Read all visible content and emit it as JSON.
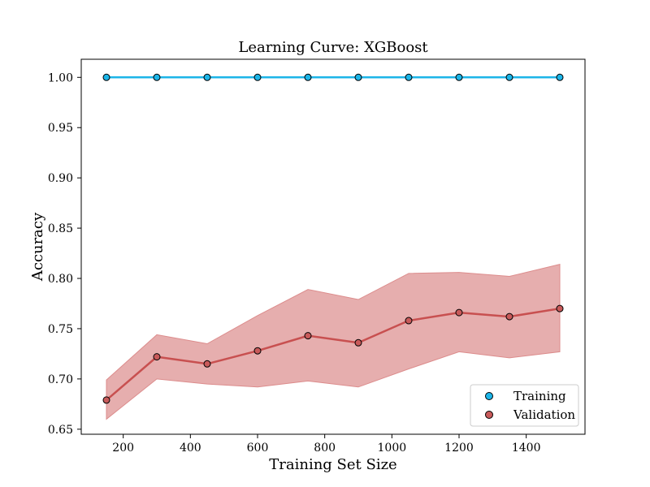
{
  "chart_data": {
    "type": "line",
    "title": "Learning Curve: XGBoost",
    "xlabel": "Training Set Size",
    "ylabel": "Accuracy",
    "x": [
      150,
      300,
      450,
      600,
      750,
      900,
      1050,
      1200,
      1350,
      1500
    ],
    "xlim": [
      75,
      1575
    ],
    "ylim": [
      0.645,
      1.018
    ],
    "xticks": [
      200,
      400,
      600,
      800,
      1000,
      1200,
      1400
    ],
    "yticks": [
      0.65,
      0.7,
      0.75,
      0.8,
      0.85,
      0.9,
      0.95,
      1.0
    ],
    "ytick_labels": [
      "0.65",
      "0.70",
      "0.75",
      "0.80",
      "0.85",
      "0.90",
      "0.95",
      "1.00"
    ],
    "grid": false,
    "legend_position": "lower-right",
    "series": [
      {
        "name": "Training",
        "color": "#1cb5e8",
        "marker_fill": "#1cb5e8",
        "values": [
          1.0,
          1.0,
          1.0,
          1.0,
          1.0,
          1.0,
          1.0,
          1.0,
          1.0,
          1.0
        ]
      },
      {
        "name": "Validation",
        "color": "#c85050",
        "marker_fill": "#c85a5a",
        "band_color": "#dc8c8c",
        "values": [
          0.679,
          0.722,
          0.715,
          0.728,
          0.743,
          0.736,
          0.758,
          0.766,
          0.762,
          0.77
        ],
        "band_upper": [
          0.699,
          0.744,
          0.735,
          0.763,
          0.789,
          0.779,
          0.805,
          0.806,
          0.802,
          0.814
        ],
        "band_lower": [
          0.66,
          0.7,
          0.695,
          0.692,
          0.698,
          0.692,
          0.71,
          0.727,
          0.721,
          0.727
        ]
      }
    ]
  }
}
